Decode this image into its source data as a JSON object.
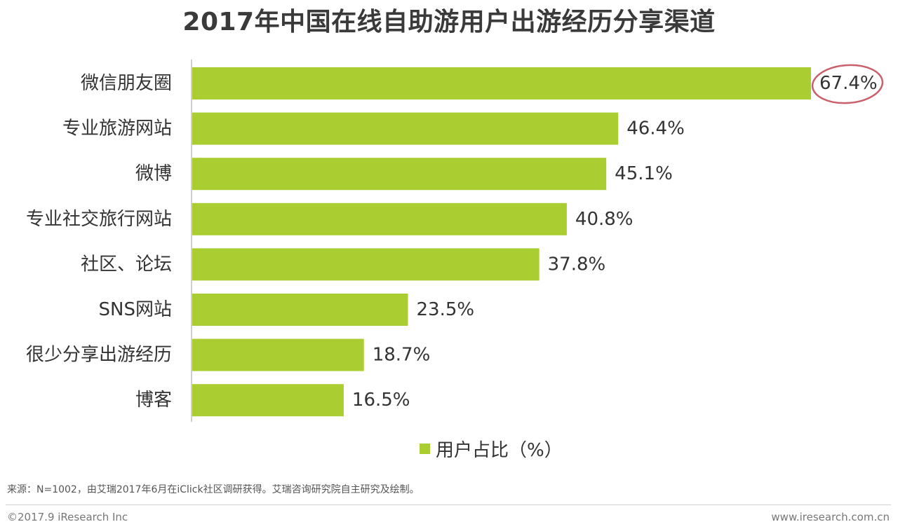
{
  "chart_data": {
    "type": "bar",
    "orientation": "horizontal",
    "title": "2017年中国在线自助游用户出游经历分享渠道",
    "categories": [
      "微信朋友圈",
      "专业旅游网站",
      "微博",
      "专业社交旅行网站",
      "社区、论坛",
      "SNS网站",
      "很少分享出游经历",
      "博客"
    ],
    "series": [
      {
        "name": "用户占比（%）",
        "values": [
          67.4,
          46.4,
          45.1,
          40.8,
          37.8,
          23.5,
          18.7,
          16.5
        ],
        "labels": [
          "67.4%",
          "46.4%",
          "45.1%",
          "40.8%",
          "37.8%",
          "23.5%",
          "18.7%",
          "16.5%"
        ]
      }
    ],
    "xlim": [
      0,
      70
    ],
    "legend": "bottom",
    "grid": false,
    "highlight_index": 0
  },
  "colors": {
    "bar": "#aacd32",
    "highlight_circle": "#c9606a",
    "axis": "#bdbdbd",
    "text": "#333333"
  },
  "footer": {
    "source": "来源：N=1002，由艾瑞2017年6月在iClick社区调研获得。艾瑞咨询研究院自主研究及绘制。",
    "copyright": "©2017.9 iResearch Inc",
    "website": "www.iresearch.com.cn"
  }
}
